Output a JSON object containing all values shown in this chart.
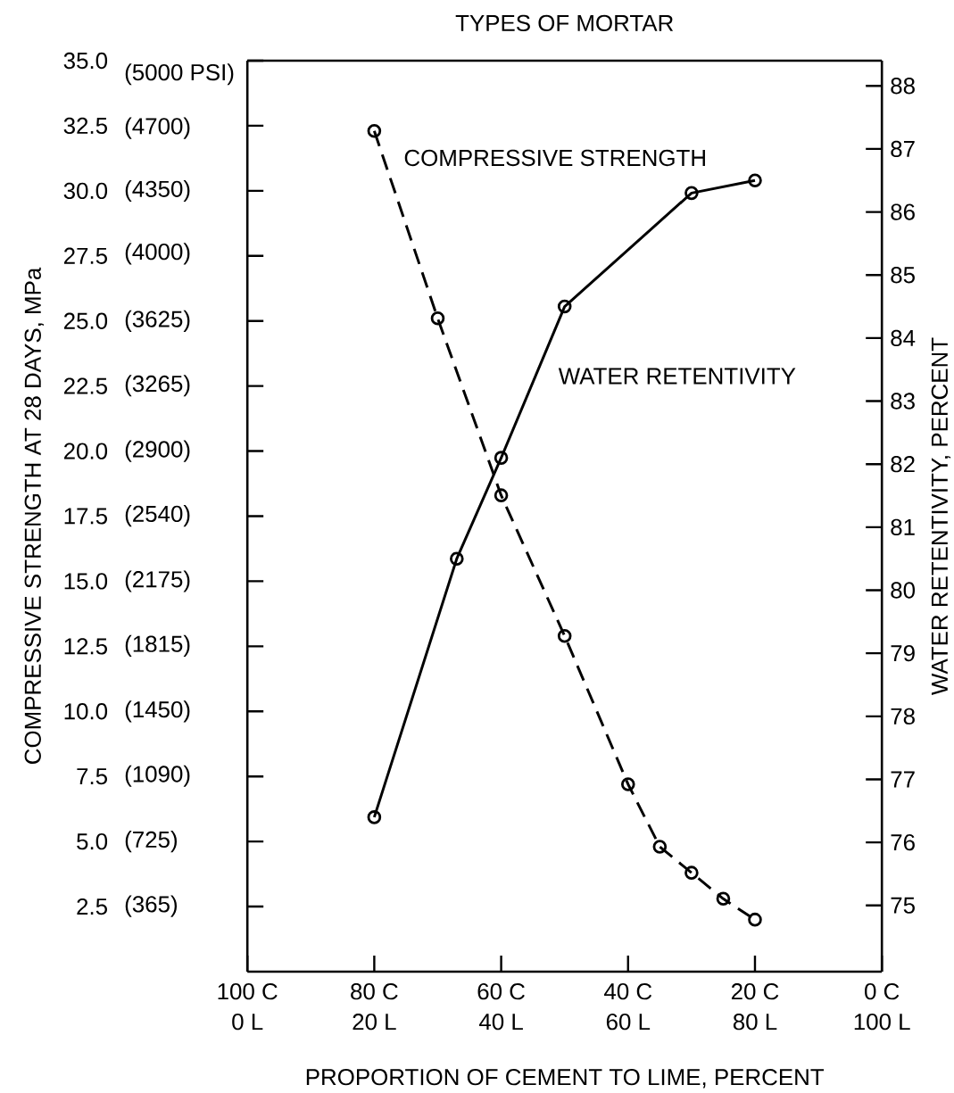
{
  "chart_data": {
    "type": "line",
    "title": "TYPES OF MORTAR",
    "xlabel": "PROPORTION OF CEMENT TO LIME, PERCENT",
    "ylabel": "COMPRESSIVE STRENGTH AT 28 DAYS, MPa",
    "y2label": "WATER RETENTIVITY, PERCENT",
    "xlim": [
      100,
      0
    ],
    "xticks": [
      {
        "value": 100,
        "label": "100 C"
      },
      {
        "value": 80,
        "label": "80 C"
      },
      {
        "value": 60,
        "label": "60 C"
      },
      {
        "value": 40,
        "label": "40 C"
      },
      {
        "value": 20,
        "label": "20 C"
      },
      {
        "value": 0,
        "label": "0 C"
      }
    ],
    "x2lim": [
      0,
      100
    ],
    "x2ticks": [
      {
        "value": 0,
        "label": "0 L"
      },
      {
        "value": 20,
        "label": "20 L"
      },
      {
        "value": 40,
        "label": "40 L"
      },
      {
        "value": 60,
        "label": "60 L"
      },
      {
        "value": 80,
        "label": "80 L"
      },
      {
        "value": 100,
        "label": "100 L"
      }
    ],
    "ylim": [
      0,
      35
    ],
    "yticks": [
      {
        "value": 35,
        "label": "35.0"
      },
      {
        "value": 32.5,
        "label": "32.5"
      },
      {
        "value": 30,
        "label": "30.0"
      },
      {
        "value": 27.5,
        "label": "27.5"
      },
      {
        "value": 25,
        "label": "25.0"
      },
      {
        "value": 22.5,
        "label": "22.5"
      },
      {
        "value": 20,
        "label": "20.0"
      },
      {
        "value": 17.5,
        "label": "17.5"
      },
      {
        "value": 15,
        "label": "15.0"
      },
      {
        "value": 12.5,
        "label": "12.5"
      },
      {
        "value": 10,
        "label": "10.0"
      },
      {
        "value": 7.5,
        "label": "7.5"
      },
      {
        "value": 5,
        "label": "5.0"
      },
      {
        "value": 2.5,
        "label": "2.5"
      }
    ],
    "y3lim": [
      0,
      5076
    ],
    "y3ticks": [
      {
        "value": 5000,
        "label": "(5000 PSI)"
      },
      {
        "value": 4700,
        "label": "(4700)"
      },
      {
        "value": 4350,
        "label": "(4350)"
      },
      {
        "value": 4000,
        "label": "(4000)"
      },
      {
        "value": 3625,
        "label": "(3625)"
      },
      {
        "value": 3265,
        "label": "(3265)"
      },
      {
        "value": 2900,
        "label": "(2900)"
      },
      {
        "value": 2540,
        "label": "(2540)"
      },
      {
        "value": 2175,
        "label": "(2175)"
      },
      {
        "value": 1815,
        "label": "(1815)"
      },
      {
        "value": 1450,
        "label": "(1450)"
      },
      {
        "value": 1090,
        "label": "(1090)"
      },
      {
        "value": 725,
        "label": "(725)"
      },
      {
        "value": 365,
        "label": "(365)"
      }
    ],
    "y2lim": [
      73.95,
      88.4
    ],
    "y2ticks": [
      75,
      76,
      77,
      78,
      79,
      80,
      81,
      82,
      83,
      84,
      85,
      86,
      87,
      88
    ],
    "marker": "circle",
    "legend": false,
    "series": [
      {
        "name": "COMPRESSIVE STRENGTH",
        "color": "#000000",
        "line_style": "dashed",
        "x": [
          80,
          70,
          60,
          50,
          40,
          35,
          30,
          25,
          20
        ],
        "values": [
          32.3,
          25.1,
          18.3,
          12.9,
          7.2,
          4.8,
          3.8,
          2.8,
          2.0
        ]
      },
      {
        "name": "WATER RETENTIVITY",
        "color": "#000000",
        "line_style": "solid",
        "axis": "y2",
        "x": [
          80,
          67,
          60,
          50,
          30,
          20
        ],
        "values": [
          76.4,
          80.5,
          82.1,
          84.5,
          86.3,
          86.5
        ]
      }
    ]
  }
}
